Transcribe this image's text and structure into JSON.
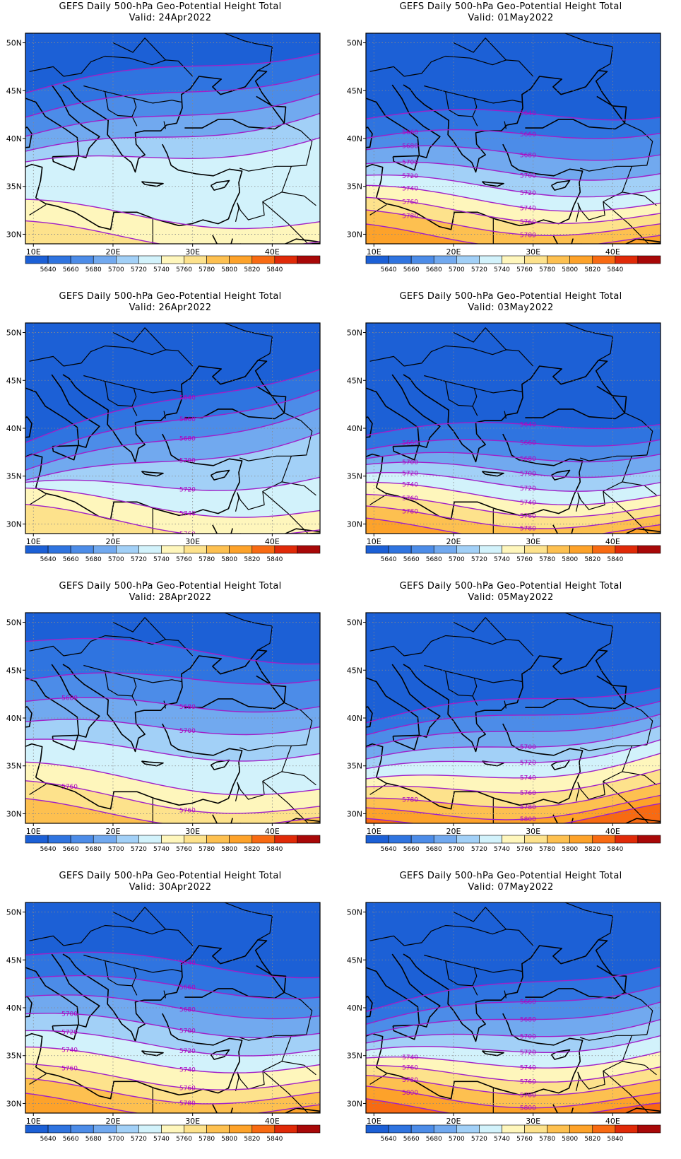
{
  "map_data": {
    "layout": "2 columns x 4 rows, left column = 24, 26, 28, 30 Apr 2022, right column = 01, 03, 05, 07 May 2022",
    "lat_ticks": [
      "50N",
      "45N",
      "40N",
      "35N",
      "30N"
    ],
    "lat_values": [
      50,
      45,
      40,
      35,
      30
    ],
    "lon_ticks": [
      "10E",
      "20E",
      "30E",
      "40E"
    ],
    "lon_values": [
      10,
      20,
      30,
      40
    ],
    "lat_range": [
      29,
      51
    ],
    "lon_range": [
      9,
      46
    ],
    "contour_line_color": "#a020c8",
    "coastline_color": "#000000",
    "gridline": "dotted",
    "colorbar": {
      "labels": [
        "5640",
        "5660",
        "5680",
        "5700",
        "5720",
        "5740",
        "5760",
        "5780",
        "5800",
        "5820",
        "5840"
      ],
      "colors": [
        "#1c60d6",
        "#2f74e0",
        "#4c8ce8",
        "#71a9ef",
        "#a2d0f7",
        "#d2f2fb",
        "#fef6bc",
        "#fde28c",
        "#fdc050",
        "#fda22a",
        "#f86a12",
        "#e02a08",
        "#a80808"
      ]
    },
    "panels": [
      {
        "title": "GEFS Daily 500-hPa Geo-Potential Height Total",
        "valid": "Valid: 24Apr2022",
        "contours": [
          {
            "value": 5640,
            "lat": 47.5,
            "tilt": 5.5
          },
          {
            "value": 5660,
            "lat": 45.0,
            "tilt": 6.0
          },
          {
            "value": 5680,
            "lat": 42.8,
            "tilt": 6.0
          },
          {
            "value": 5700,
            "lat": 40.8,
            "tilt": 5.5
          },
          {
            "value": 5720,
            "lat": 38.8,
            "tilt": 4.0
          },
          {
            "value": 5740,
            "lat": 32.3,
            "tilt": -1.0
          },
          {
            "value": 5760,
            "lat": 30.0,
            "tilt": -1.0
          }
        ],
        "labels": []
      },
      {
        "title": "GEFS Daily 500-hPa Geo-Potential Height Total",
        "valid": "Valid: 01May2022",
        "contours": [
          {
            "value": 5640,
            "lat": 42.8,
            "tilt": 1.5
          },
          {
            "value": 5660,
            "lat": 40.8,
            "tilt": 2.0
          },
          {
            "value": 5680,
            "lat": 38.9,
            "tilt": 1.0
          },
          {
            "value": 5700,
            "lat": 37.0,
            "tilt": 0.5
          },
          {
            "value": 5720,
            "lat": 35.4,
            "tilt": 0.0
          },
          {
            "value": 5740,
            "lat": 34.0,
            "tilt": -0.5
          },
          {
            "value": 5760,
            "lat": 32.7,
            "tilt": -0.5
          },
          {
            "value": 5780,
            "lat": 31.4,
            "tilt": -0.5
          },
          {
            "value": 5800,
            "lat": 30.0,
            "tilt": -0.5
          }
        ],
        "labels": [
          "5640",
          "5660",
          "5680",
          "5660",
          "5680",
          "5700",
          "5720",
          "5700",
          "5720",
          "5740",
          "5740",
          "5760",
          "5760",
          "5780",
          "5780",
          "5800"
        ]
      },
      {
        "title": "GEFS Daily 500-hPa Geo-Potential Height Total",
        "valid": "Valid: 26Apr2022",
        "contours": [
          {
            "value": 5640,
            "lat": 43.0,
            "tilt": 9.0
          },
          {
            "value": 5660,
            "lat": 41.0,
            "tilt": 8.5
          },
          {
            "value": 5680,
            "lat": 39.2,
            "tilt": 8.0
          },
          {
            "value": 5700,
            "lat": 37.2,
            "tilt": 6.5
          },
          {
            "value": 5720,
            "lat": 34.6,
            "tilt": 2.0
          },
          {
            "value": 5740,
            "lat": 32.4,
            "tilt": -1.0
          },
          {
            "value": 5760,
            "lat": 30.4,
            "tilt": -1.5
          }
        ],
        "labels": [
          "5640",
          "5660",
          "5680",
          "5700",
          "5720",
          "5740",
          "5760"
        ]
      },
      {
        "title": "GEFS Daily 500-hPa Geo-Potential Height Total",
        "valid": "Valid: 03May2022",
        "contours": [
          {
            "value": 5640,
            "lat": 40.5,
            "tilt": 2.5
          },
          {
            "value": 5660,
            "lat": 38.8,
            "tilt": 2.5
          },
          {
            "value": 5680,
            "lat": 37.4,
            "tilt": 2.0
          },
          {
            "value": 5700,
            "lat": 36.1,
            "tilt": 1.0
          },
          {
            "value": 5720,
            "lat": 34.8,
            "tilt": 0.5
          },
          {
            "value": 5740,
            "lat": 33.5,
            "tilt": 0.0
          },
          {
            "value": 5760,
            "lat": 32.2,
            "tilt": 0.0
          },
          {
            "value": 5780,
            "lat": 31.0,
            "tilt": 0.0
          },
          {
            "value": 5800,
            "lat": 29.8,
            "tilt": 0.0
          }
        ],
        "labels": [
          "5640",
          "5660",
          "5660",
          "5680",
          "5700",
          "5700",
          "5720",
          "5720",
          "5740",
          "5740",
          "5760",
          "5760",
          "5780",
          "5780",
          "5800"
        ]
      },
      {
        "title": "GEFS Daily 500-hPa Geo-Potential Height Total",
        "valid": "Valid: 28Apr2022",
        "contours": [
          {
            "value": 5640,
            "lat": 47.5,
            "tilt": -1.0
          },
          {
            "value": 5660,
            "lat": 44.5,
            "tilt": 1.5
          },
          {
            "value": 5680,
            "lat": 41.8,
            "tilt": 1.0
          },
          {
            "value": 5700,
            "lat": 39.5,
            "tilt": 1.0
          },
          {
            "value": 5720,
            "lat": 37.0,
            "tilt": 0.0
          },
          {
            "value": 5740,
            "lat": 33.8,
            "tilt": -1.5
          },
          {
            "value": 5760,
            "lat": 31.8,
            "tilt": -1.5
          },
          {
            "value": 5780,
            "lat": 30.2,
            "tilt": -1.0
          }
        ],
        "labels": [
          "5680",
          "5680",
          "5700",
          "5760",
          "5780",
          "5760"
        ]
      },
      {
        "title": "GEFS Daily 500-hPa Geo-Potential Height Total",
        "valid": "Valid: 05May2022",
        "contours": [
          {
            "value": 5640,
            "lat": 42.0,
            "tilt": 5.0
          },
          {
            "value": 5660,
            "lat": 40.5,
            "tilt": 5.0
          },
          {
            "value": 5680,
            "lat": 39.0,
            "tilt": 5.0
          },
          {
            "value": 5700,
            "lat": 37.6,
            "tilt": 5.0
          },
          {
            "value": 5720,
            "lat": 36.2,
            "tilt": 4.5
          },
          {
            "value": 5740,
            "lat": 34.8,
            "tilt": 4.0
          },
          {
            "value": 5760,
            "lat": 33.4,
            "tilt": 3.0
          },
          {
            "value": 5780,
            "lat": 32.0,
            "tilt": 2.5
          },
          {
            "value": 5800,
            "lat": 30.8,
            "tilt": 2.0
          },
          {
            "value": 5820,
            "lat": 29.8,
            "tilt": 2.0
          }
        ],
        "labels": [
          "5700",
          "5720",
          "5740",
          "5760",
          "5780",
          "5780",
          "5800",
          "5820"
        ]
      },
      {
        "title": "GEFS Daily 500-hPa Geo-Potential Height Total",
        "valid": "Valid: 30Apr2022",
        "contours": [
          {
            "value": 5640,
            "lat": 45.0,
            "tilt": -1.0
          },
          {
            "value": 5660,
            "lat": 42.6,
            "tilt": -0.5
          },
          {
            "value": 5680,
            "lat": 40.5,
            "tilt": -0.5
          },
          {
            "value": 5700,
            "lat": 38.5,
            "tilt": -0.5
          },
          {
            "value": 5720,
            "lat": 36.6,
            "tilt": -0.5
          },
          {
            "value": 5740,
            "lat": 34.8,
            "tilt": -0.5
          },
          {
            "value": 5760,
            "lat": 33.0,
            "tilt": -0.5
          },
          {
            "value": 5780,
            "lat": 31.5,
            "tilt": -0.5
          },
          {
            "value": 5800,
            "lat": 30.0,
            "tilt": -0.5
          }
        ],
        "labels": [
          "5640",
          "5660",
          "5680",
          "5700",
          "5700",
          "5720",
          "5720",
          "5740",
          "5740",
          "5760",
          "5760",
          "5780",
          "5800"
        ]
      },
      {
        "title": "GEFS Daily 500-hPa Geo-Potential Height Total",
        "valid": "Valid: 07May2022",
        "contours": [
          {
            "value": 5640,
            "lat": 42.6,
            "tilt": 6.0
          },
          {
            "value": 5660,
            "lat": 40.8,
            "tilt": 5.5
          },
          {
            "value": 5680,
            "lat": 39.2,
            "tilt": 5.0
          },
          {
            "value": 5700,
            "lat": 37.7,
            "tilt": 4.0
          },
          {
            "value": 5720,
            "lat": 36.3,
            "tilt": 3.0
          },
          {
            "value": 5740,
            "lat": 34.9,
            "tilt": 2.0
          },
          {
            "value": 5760,
            "lat": 33.6,
            "tilt": 1.0
          },
          {
            "value": 5780,
            "lat": 32.3,
            "tilt": 0.5
          },
          {
            "value": 5800,
            "lat": 31.0,
            "tilt": 0.0
          },
          {
            "value": 5820,
            "lat": 29.8,
            "tilt": 0.0
          }
        ],
        "labels": [
          "5660",
          "5680",
          "5700",
          "5720",
          "5740",
          "5740",
          "5760",
          "5760",
          "5780",
          "5780",
          "5800",
          "5800",
          "5820"
        ]
      }
    ]
  }
}
